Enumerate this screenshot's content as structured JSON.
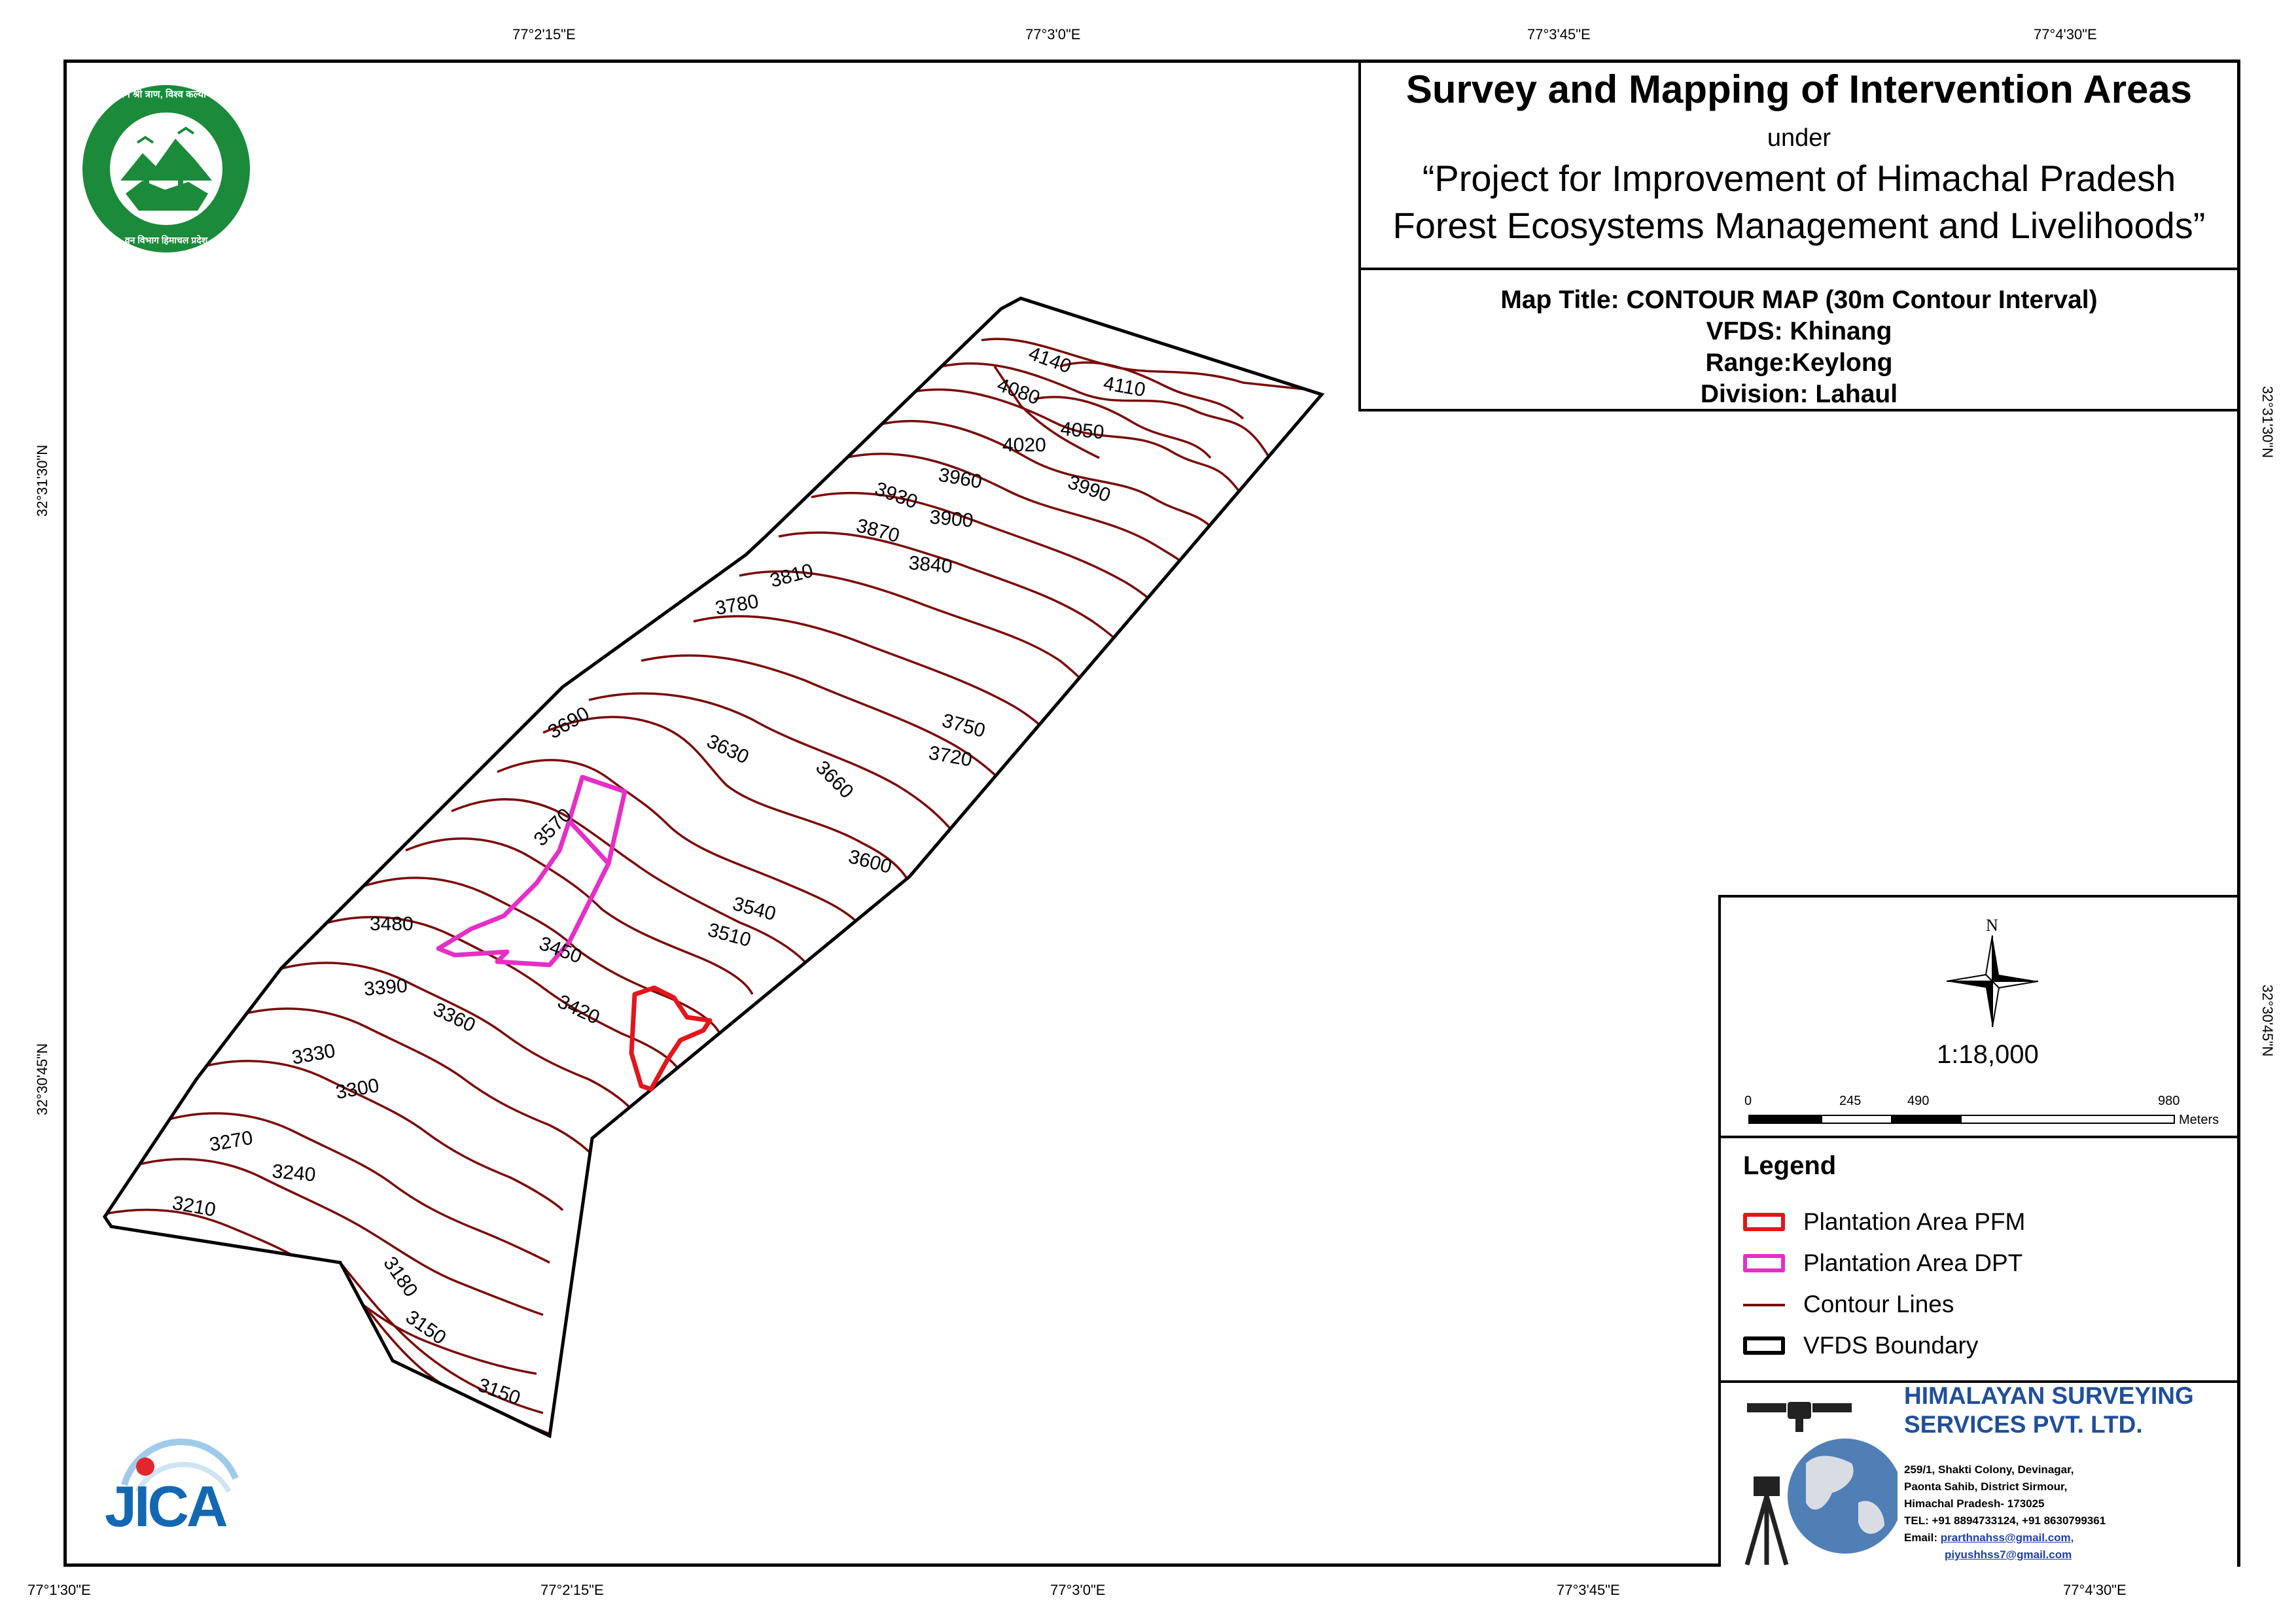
{
  "graticule": {
    "top": [
      "77°2'15\"E",
      "77°3'0\"E",
      "77°3'45\"E",
      "77°4'30\"E"
    ],
    "bottom": [
      "77°1'30\"E",
      "77°2'15\"E",
      "77°3'0\"E",
      "77°3'45\"E",
      "77°4'30\"E"
    ],
    "left": [
      "32°31'30\"N",
      "32°30'45\"N"
    ],
    "right": [
      "32°31'30\"N",
      "32°30'45\"N"
    ]
  },
  "title": {
    "main": "Survey and Mapping of Intervention Areas",
    "under": "under",
    "project_line1": "“Project for Improvement of Himachal Pradesh",
    "project_line2": "Forest Ecosystems Management and Livelihoods”",
    "map_title": "Map Title: CONTOUR MAP (30m Contour Interval)",
    "vfds": "VFDS: Khinang",
    "range": "Range:Keylong",
    "division": "Division: Lahaul"
  },
  "north_label": "N",
  "scale": {
    "ratio": "1:18,000",
    "ticks": [
      "0",
      "245",
      "490",
      "980"
    ],
    "unit": "Meters"
  },
  "legend": {
    "title": "Legend",
    "items": [
      {
        "label": "Plantation Area PFM",
        "color": "#e3161b",
        "kind": "box"
      },
      {
        "label": "Plantation Area DPT",
        "color": "#e52fc6",
        "kind": "box"
      },
      {
        "label": "Contour Lines",
        "color": "#7a0b0b",
        "kind": "line"
      },
      {
        "label": "VFDS Boundary",
        "color": "#000000",
        "kind": "box"
      }
    ]
  },
  "company": {
    "name_line1": "HIMALAYAN SURVEYING",
    "name_line2": "SERVICES PVT. LTD.",
    "addr1": "259/1, Shakti Colony, Devinagar,",
    "addr2": "Paonta Sahib, District Sirmour,",
    "addr3": "Himachal Pradesh- 173025",
    "tel": "TEL: +91 8894733124, +91 8630799361",
    "email_label": "Email: ",
    "email1": "prarthnahss@gmail.com,",
    "email2": "piyushhss7@gmail.com"
  },
  "logos": {
    "forest_dept_text_top": "वन श्री त्राण, विश्व कल्याण",
    "forest_dept_text_bottom": "वन विभाग हिमाचल प्रदेश",
    "jica": "JICA"
  },
  "contour_labels": [
    "4140",
    "4110",
    "4080",
    "4050",
    "4020",
    "3990",
    "3960",
    "3930",
    "3900",
    "3870",
    "3840",
    "3810",
    "3780",
    "3750",
    "3720",
    "3690",
    "3660",
    "3630",
    "3600",
    "3570",
    "3540",
    "3510",
    "3480",
    "3450",
    "3420",
    "3390",
    "3360",
    "3330",
    "3300",
    "3270",
    "3240",
    "3210",
    "3180",
    "3150",
    "3150"
  ],
  "colors": {
    "contour": "#7a0b0b",
    "pfm": "#e3161b",
    "dpt": "#e52fc6",
    "forest_green": "#1b8a3a",
    "jica_blue": "#1468b3",
    "jica_red": "#e2272c",
    "company_blue": "#1f4f9c"
  }
}
